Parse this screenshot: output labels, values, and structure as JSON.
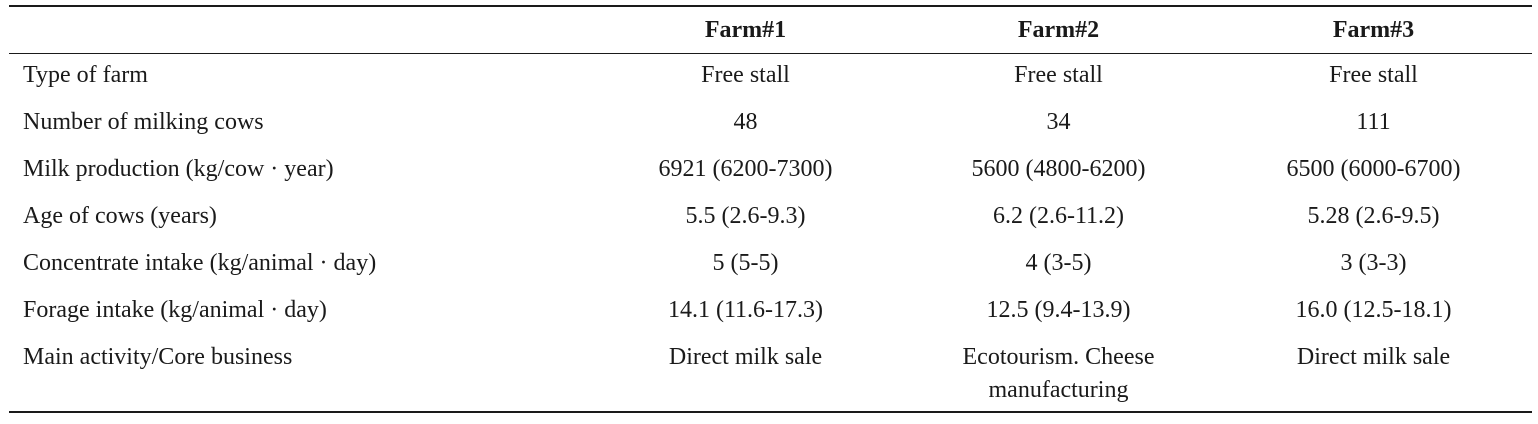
{
  "table": {
    "headers": [
      "",
      "Farm#1",
      "Farm#2",
      "Farm#3"
    ],
    "rows": [
      [
        "Type of farm",
        "Free stall",
        "Free stall",
        "Free stall"
      ],
      [
        "Number of milking cows",
        "48",
        "34",
        "111"
      ],
      [
        "Milk production (kg/cow · year)",
        "6921 (6200-7300)",
        "5600 (4800-6200)",
        "6500 (6000-6700)"
      ],
      [
        "Age of cows (years)",
        "5.5 (2.6-9.3)",
        "6.2 (2.6-11.2)",
        "5.28 (2.6-9.5)"
      ],
      [
        "Concentrate intake (kg/animal · day)",
        "5 (5-5)",
        "4 (3-5)",
        "3 (3-3)"
      ],
      [
        "Forage intake (kg/animal · day)",
        "14.1 (11.6-17.3)",
        "12.5 (9.4-13.9)",
        "16.0 (12.5-18.1)"
      ],
      [
        "Main activity/Core business",
        "Direct milk sale",
        "Ecotourism. Cheese manufacturing",
        "Direct milk sale"
      ]
    ]
  }
}
